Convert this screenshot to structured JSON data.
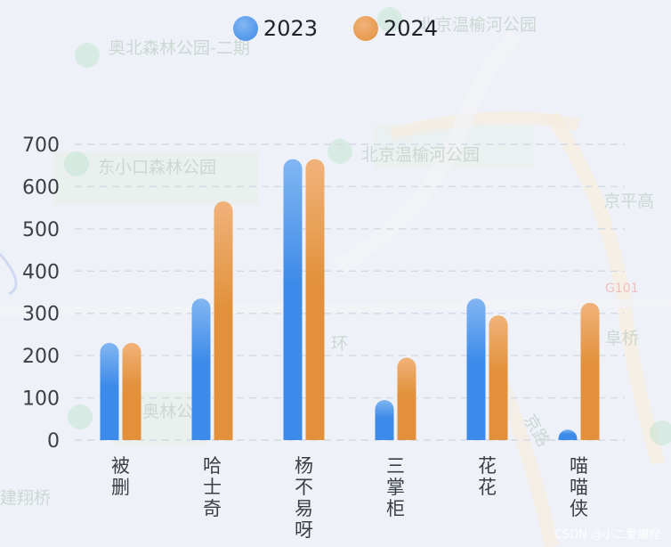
{
  "chart_data": {
    "type": "bar",
    "title": "",
    "xlabel": "",
    "ylabel": "",
    "ylim": [
      0,
      700
    ],
    "yticks": [
      0,
      100,
      200,
      300,
      400,
      500,
      600,
      700
    ],
    "categories": [
      "被删",
      "哈士奇",
      "杨不易呀",
      "三掌柜",
      "花花",
      "喵喵侠"
    ],
    "series": [
      {
        "name": "2023",
        "values": [
          230,
          335,
          665,
          95,
          335,
          25
        ],
        "color": "#3c8ae9",
        "color_top": "#82b6f2"
      },
      {
        "name": "2024",
        "values": [
          230,
          565,
          665,
          195,
          295,
          325
        ],
        "color": "#e2913a",
        "color_top": "#f1b27a"
      }
    ],
    "legend_position": "top-center",
    "grid": true
  },
  "map_labels": [
    "奥北森林公园-二期",
    "北京温榆河公园",
    "东小口森林公园",
    "北京温榆河公园",
    "京平高",
    "G101",
    "阜桥",
    "奥林公园",
    "建翔桥",
    "环",
    "京路"
  ],
  "watermark": "CSDN @小二爱编程·"
}
